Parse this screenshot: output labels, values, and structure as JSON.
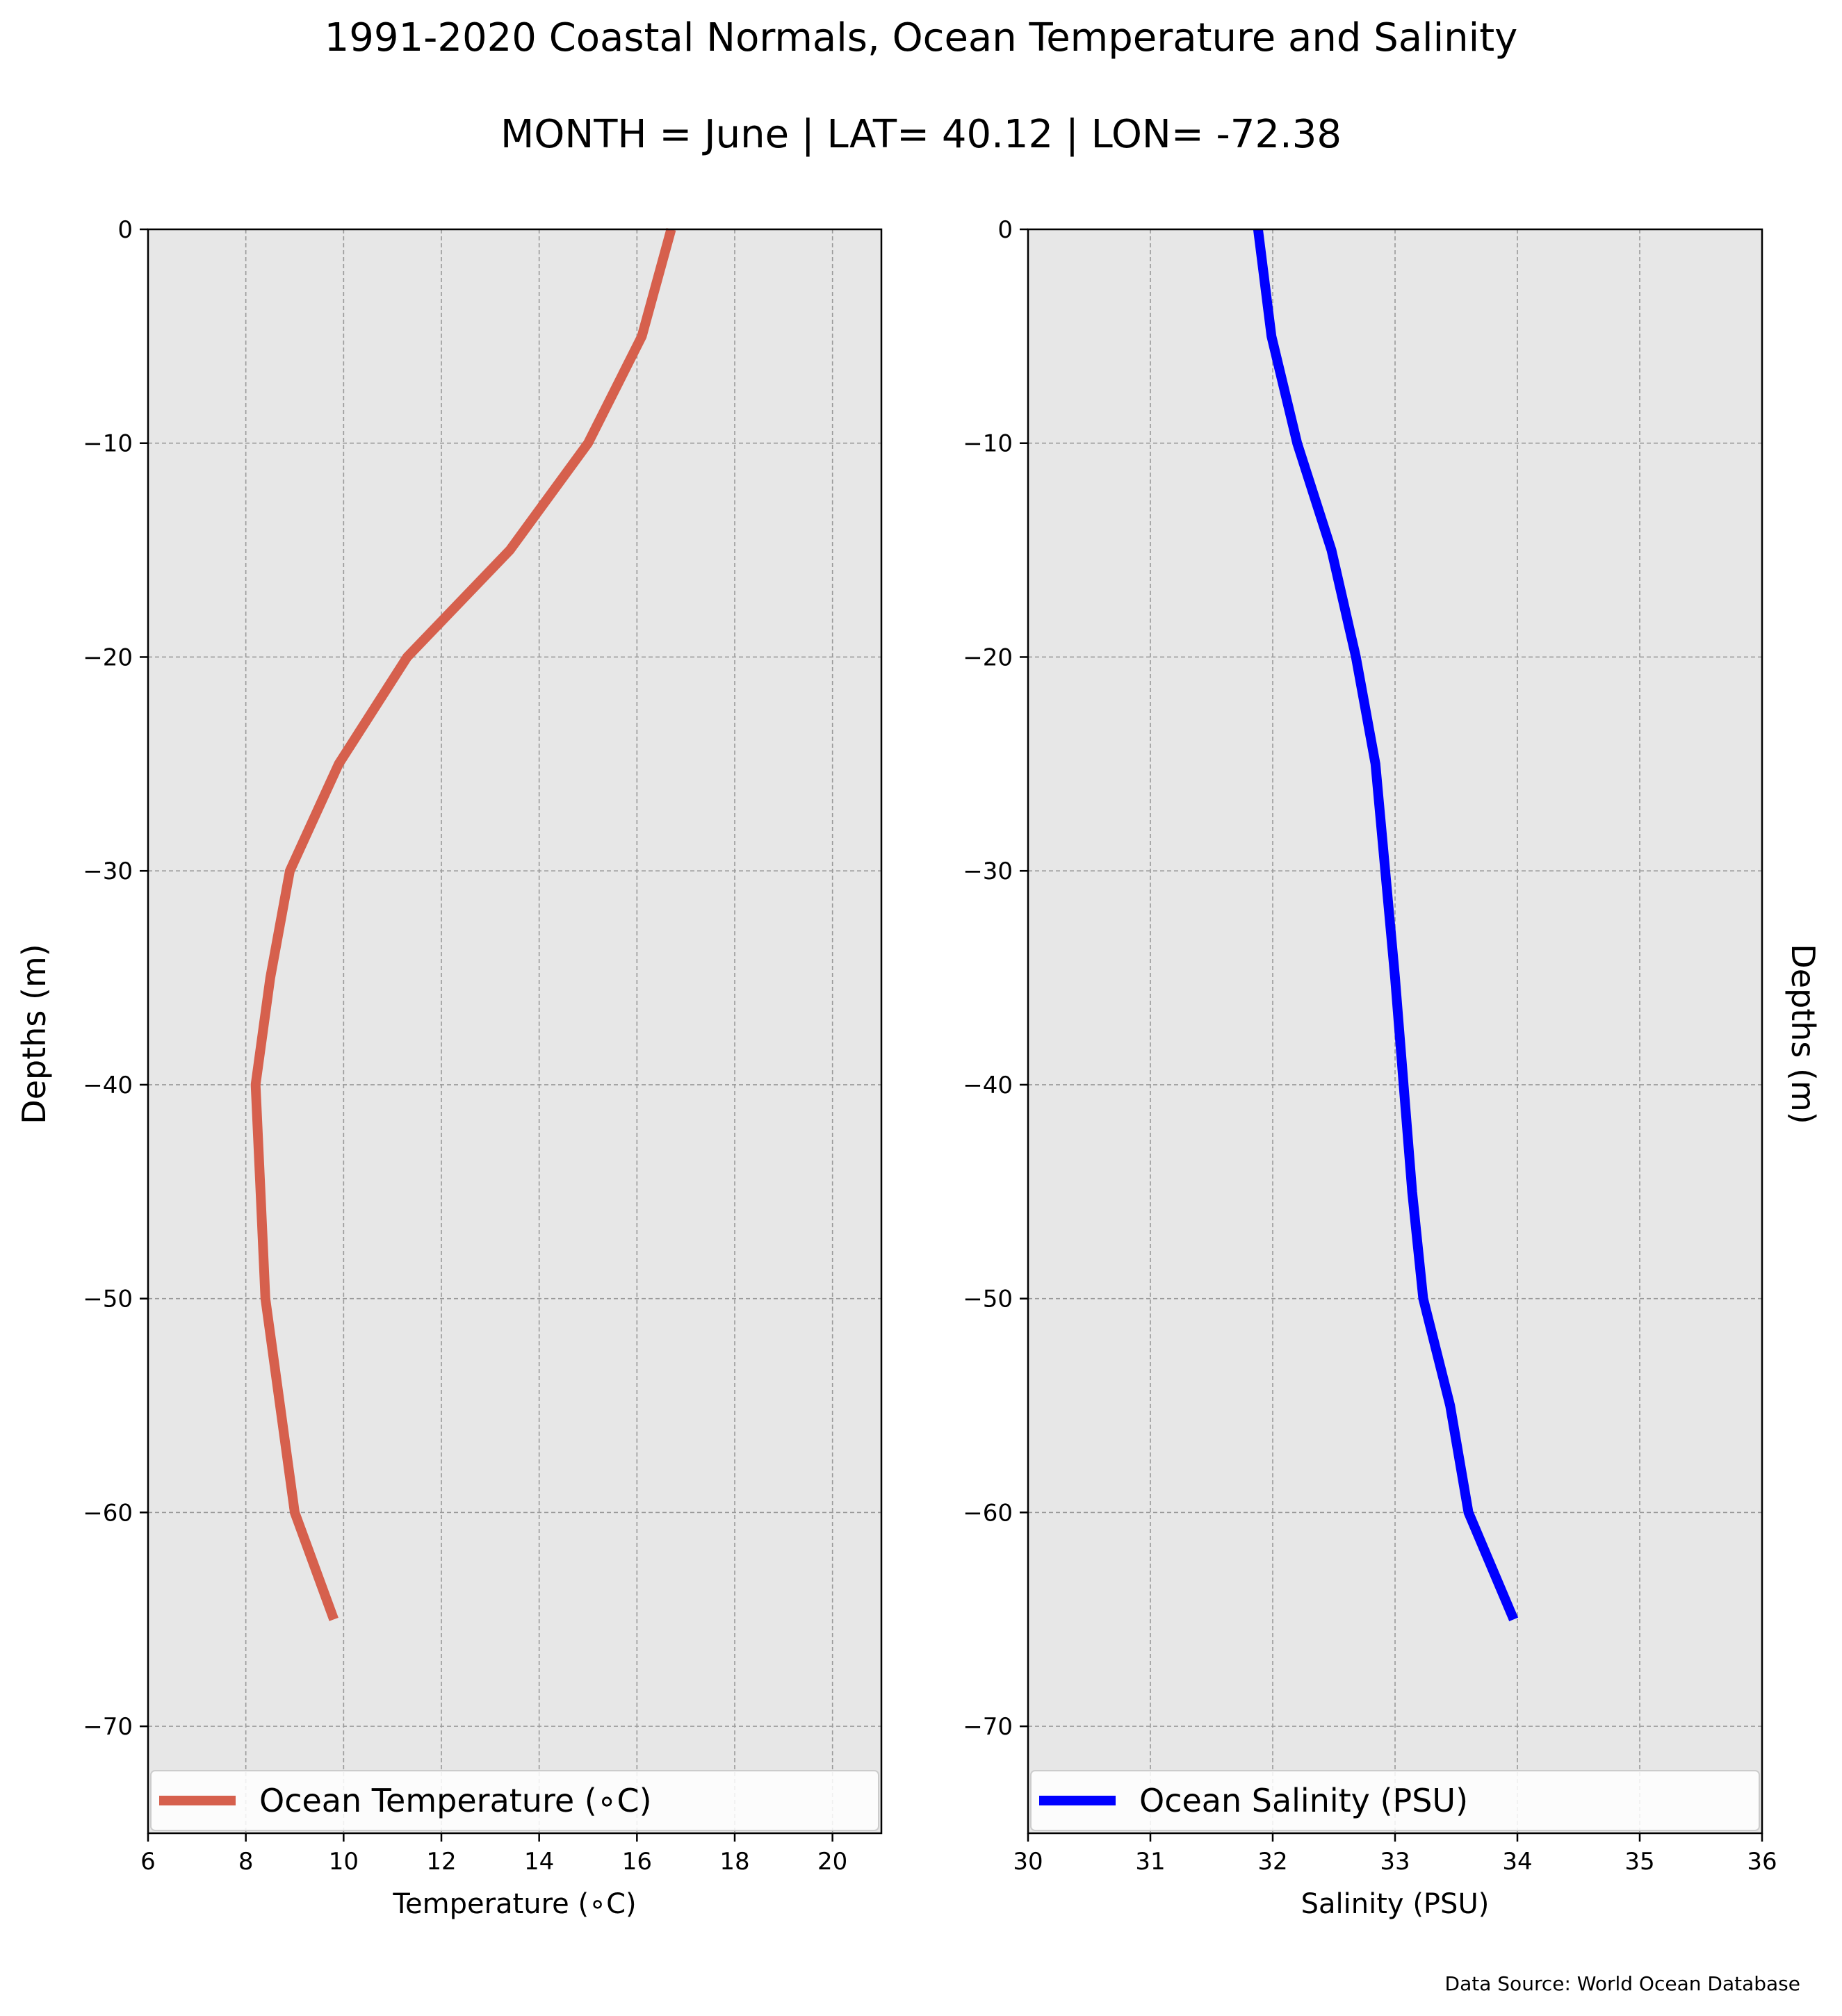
{
  "title_line1": "1991-2020 Coastal Normals, Ocean Temperature and Salinity",
  "title_line2": "MONTH = June | LAT= 40.12 | LON= -72.38",
  "source": "Data Source: World Ocean Database",
  "chart_data": [
    {
      "type": "line",
      "xlabel": "Temperature (∘C)",
      "ylabel": "Depths (m)",
      "xlim": [
        6,
        21
      ],
      "ylim": [
        -75,
        0
      ],
      "xticks": [
        6,
        8,
        10,
        12,
        14,
        16,
        18,
        20
      ],
      "yticks": [
        0,
        -10,
        -20,
        -30,
        -40,
        -50,
        -60,
        -70
      ],
      "grid": true,
      "legend_position": "bottom",
      "series": [
        {
          "name": "Ocean Temperature (∘C)",
          "color": "#d6604d",
          "x": [
            16.7,
            16.1,
            15.0,
            13.4,
            11.3,
            9.9,
            8.9,
            8.5,
            8.2,
            8.3,
            8.4,
            8.7,
            9.0,
            9.8
          ],
          "y": [
            0,
            -5,
            -10,
            -15,
            -20,
            -25,
            -30,
            -35,
            -40,
            -45,
            -50,
            -55,
            -60,
            -65
          ]
        }
      ]
    },
    {
      "type": "line",
      "xlabel": "Salinity (PSU)",
      "ylabel": "Depths (m)",
      "xlim": [
        30,
        36
      ],
      "ylim": [
        -75,
        0
      ],
      "xticks": [
        30,
        31,
        32,
        33,
        34,
        35,
        36
      ],
      "yticks": [
        0,
        -10,
        -20,
        -30,
        -40,
        -50,
        -60,
        -70
      ],
      "grid": true,
      "legend_position": "bottom",
      "series": [
        {
          "name": "Ocean Salinity (PSU)",
          "color": "#0000ff",
          "x": [
            31.88,
            31.99,
            32.2,
            32.48,
            32.68,
            32.84,
            32.92,
            33.0,
            33.07,
            33.14,
            33.23,
            33.45,
            33.6,
            33.97
          ],
          "y": [
            0,
            -5,
            -10,
            -15,
            -20,
            -25,
            -30,
            -35,
            -40,
            -45,
            -50,
            -55,
            -60,
            -65
          ]
        }
      ]
    }
  ]
}
